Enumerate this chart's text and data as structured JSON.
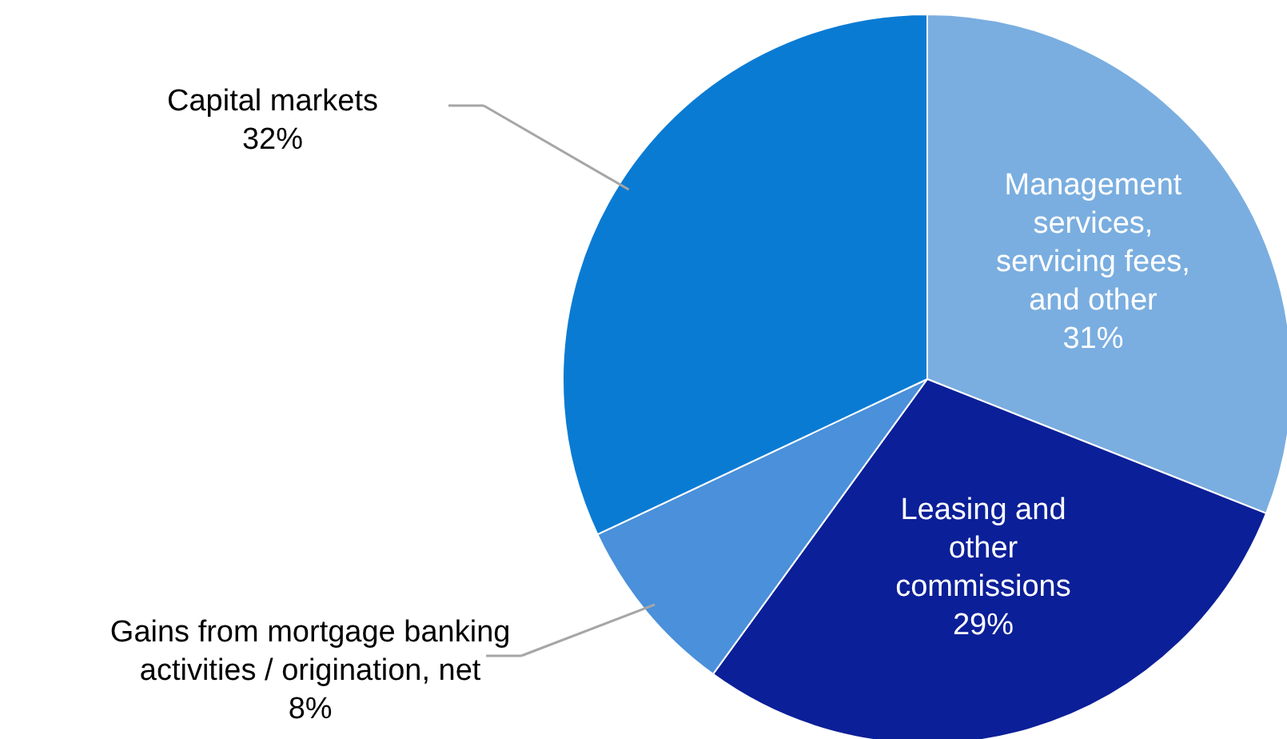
{
  "chart_data": {
    "type": "pie",
    "categories": [
      "Management services, servicing fees, and other",
      "Leasing and other commissions",
      "Gains from mortgage banking activities / origination, net",
      "Capital markets"
    ],
    "values": [
      31,
      29,
      8,
      32
    ],
    "colors": [
      "#7aaee0",
      "#0b1f98",
      "#4a90da",
      "#0a7bd3"
    ],
    "value_labels": [
      "31%",
      "29%",
      "8%",
      "32%"
    ]
  }
}
